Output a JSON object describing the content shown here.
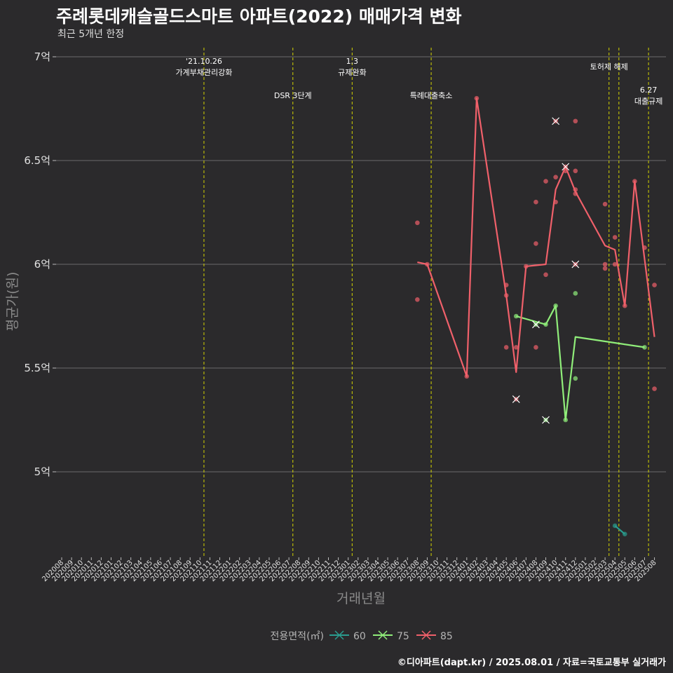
{
  "header": {
    "title": "주례롯데캐슬골드스마트 아파트(2022) 매매가격 변화",
    "subtitle": "최근 5개년 한정"
  },
  "caption": "©디아파트(dapt.kr) / 2025.08.01 / 자료=국토교통부 실거래가",
  "colors": {
    "s60": "#2a9d8f",
    "s75": "#90ee7a",
    "s85": "#f0606a",
    "vline": "#d4d400",
    "grid": "#6b6b6b"
  },
  "chart_data": {
    "type": "line",
    "ylabel": "평균가(원)",
    "xlabel": "거래년월",
    "ylim": [
      4.62,
      7.05
    ],
    "yticks": [
      {
        "v": 5.0,
        "label": "5억"
      },
      {
        "v": 5.5,
        "label": "5.5억"
      },
      {
        "v": 6.0,
        "label": "6억"
      },
      {
        "v": 6.5,
        "label": "6.5억"
      },
      {
        "v": 7.0,
        "label": "7억"
      }
    ],
    "categories": [
      "202008",
      "202009",
      "202010",
      "202011",
      "202012",
      "202101",
      "202102",
      "202103",
      "202104",
      "202105",
      "202106",
      "202107",
      "202108",
      "202109",
      "202110",
      "202111",
      "202112",
      "202201",
      "202202",
      "202203",
      "202204",
      "202205",
      "202206",
      "202207",
      "202208",
      "202209",
      "202210",
      "202211",
      "202212",
      "202301",
      "202302",
      "202303",
      "202304",
      "202305",
      "202306",
      "202307",
      "202308",
      "202309",
      "202310",
      "202311",
      "202312",
      "202401",
      "202402",
      "202403",
      "202404",
      "202405",
      "202406",
      "202407",
      "202408",
      "202409",
      "202410",
      "202411",
      "202412",
      "202501",
      "202502",
      "202503",
      "202504",
      "202505",
      "202506",
      "202507",
      "202508"
    ],
    "annotations": [
      {
        "x": 14.4,
        "lines": [
          "'21.10.26",
          "가계부채관리강화"
        ],
        "row": 0
      },
      {
        "x": 23.4,
        "lines": [
          "DSR 3단계"
        ],
        "row": 2
      },
      {
        "x": 29.4,
        "lines": [
          "1.3",
          "규제완화"
        ],
        "row": 0
      },
      {
        "x": 37.4,
        "lines": [
          "특례대출축소"
        ],
        "row": 2
      },
      {
        "x": 55.4,
        "lines": [
          "토허제 해제"
        ],
        "row": 1
      },
      {
        "x": 56.4,
        "lines": [],
        "row": 1
      },
      {
        "x": 59.4,
        "lines": [
          "6.27",
          "대출규제"
        ],
        "row": 3
      }
    ],
    "legend_title": "전용면적(㎡)",
    "series": [
      {
        "name": "60",
        "color_key": "s60",
        "line": [
          [
            56,
            4.74
          ],
          [
            57,
            4.7
          ]
        ],
        "points": [
          [
            56,
            4.74
          ],
          [
            57,
            4.7
          ]
        ],
        "crosses": []
      },
      {
        "name": "75",
        "color_key": "s75",
        "line": [
          [
            46,
            5.75
          ],
          [
            49,
            5.71
          ],
          [
            50,
            5.8
          ],
          [
            51,
            5.25
          ],
          [
            52,
            5.65
          ],
          [
            59,
            5.6
          ]
        ],
        "points": [
          [
            46,
            5.75
          ],
          [
            49,
            5.71
          ],
          [
            50,
            5.8
          ],
          [
            51,
            5.25
          ],
          [
            52,
            5.86
          ],
          [
            52,
            5.45
          ],
          [
            59,
            5.6
          ]
        ],
        "crosses": [
          [
            48,
            5.71
          ],
          [
            49,
            5.25
          ]
        ]
      },
      {
        "name": "85",
        "color_key": "s85",
        "line": [
          [
            36,
            6.01
          ],
          [
            37,
            6.0
          ],
          [
            41,
            5.46
          ],
          [
            42,
            6.8
          ],
          [
            45,
            5.85
          ],
          [
            46,
            5.48
          ],
          [
            47,
            5.99
          ],
          [
            49,
            6.0
          ],
          [
            50,
            6.36
          ],
          [
            51,
            6.47
          ],
          [
            52,
            6.35
          ],
          [
            55,
            6.09
          ],
          [
            56,
            6.07
          ],
          [
            57,
            5.8
          ],
          [
            58,
            6.4
          ],
          [
            60,
            5.65
          ]
        ],
        "points": [
          [
            36,
            6.2
          ],
          [
            36,
            5.83
          ],
          [
            37,
            6.0
          ],
          [
            41,
            5.46
          ],
          [
            42,
            6.8
          ],
          [
            45,
            5.9
          ],
          [
            45,
            5.85
          ],
          [
            45,
            5.6
          ],
          [
            46,
            5.6
          ],
          [
            47,
            5.99
          ],
          [
            48,
            6.3
          ],
          [
            48,
            6.1
          ],
          [
            48,
            5.6
          ],
          [
            49,
            6.4
          ],
          [
            49,
            5.95
          ],
          [
            50,
            6.42
          ],
          [
            50,
            6.3
          ],
          [
            51,
            6.45
          ],
          [
            52,
            6.69
          ],
          [
            52,
            6.45
          ],
          [
            52,
            6.36
          ],
          [
            52,
            6.34
          ],
          [
            55,
            6.29
          ],
          [
            55,
            6.0
          ],
          [
            55,
            5.98
          ],
          [
            56,
            6.13
          ],
          [
            56,
            6.0
          ],
          [
            57,
            5.8
          ],
          [
            58,
            6.4
          ],
          [
            59,
            6.08
          ],
          [
            60,
            5.9
          ],
          [
            60,
            5.4
          ]
        ],
        "crosses": [
          [
            46,
            5.35
          ],
          [
            50,
            6.69
          ],
          [
            51,
            6.47
          ],
          [
            52,
            6.0
          ]
        ]
      }
    ]
  }
}
